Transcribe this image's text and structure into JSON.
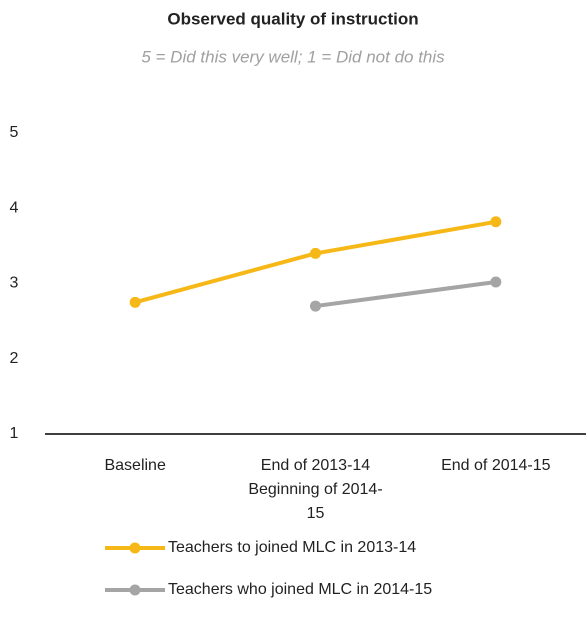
{
  "chart_data": {
    "type": "line",
    "title": "Observed quality of instruction",
    "subtitle": "5 = Did this very well; 1 = Did not do this",
    "categories": [
      "Baseline",
      "End of 2013-14 Beginning of 2014-15",
      "End of 2014-15"
    ],
    "series": [
      {
        "name": "Teachers to joined MLC in 2013-14",
        "color": "#f6b817",
        "values": [
          2.75,
          3.4,
          3.82
        ]
      },
      {
        "name": "Teachers who joined MLC in 2014-15",
        "color": "#a5a5a5",
        "values": [
          null,
          2.7,
          3.02
        ]
      }
    ],
    "ylim": [
      1,
      5
    ],
    "yticks": [
      1,
      2,
      3,
      4,
      5
    ],
    "grid": false,
    "legend": "bottom"
  }
}
